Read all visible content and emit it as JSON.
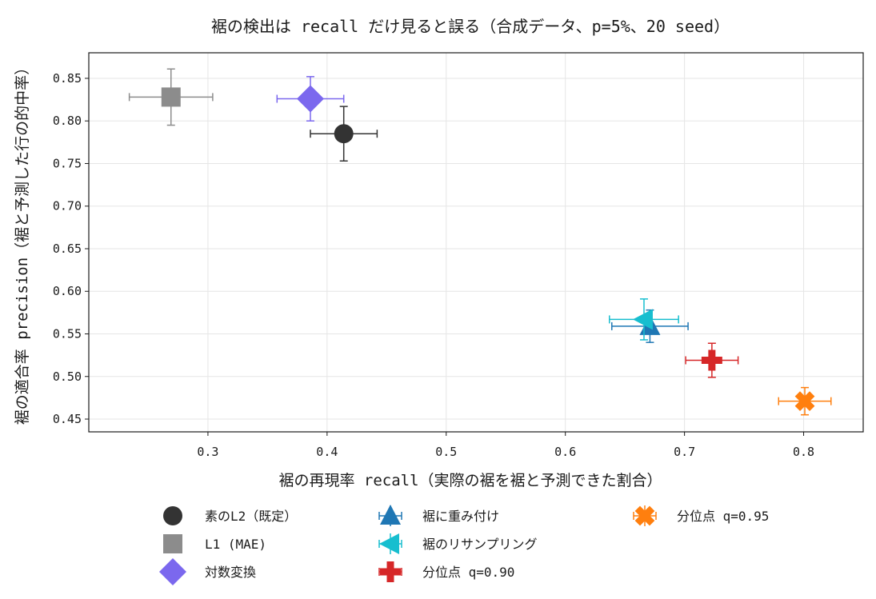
{
  "chart_data": {
    "type": "scatter",
    "title": "裾の検出は recall だけ見ると誤る（合成データ、p=5%、20 seed）",
    "xlabel": "裾の再現率 recall（実際の裾を裾と予測できた割合）",
    "ylabel": "裾の適合率 precision（裾と予測した行の的中率）",
    "xlim": [
      0.2,
      0.85
    ],
    "ylim": [
      0.435,
      0.88
    ],
    "x_ticks": [
      0.3,
      0.4,
      0.5,
      0.6,
      0.7,
      0.8
    ],
    "x_tick_labels": [
      "0.3",
      "0.4",
      "0.5",
      "0.6",
      "0.7",
      "0.8"
    ],
    "y_ticks": [
      0.45,
      0.5,
      0.55,
      0.6,
      0.65,
      0.7,
      0.75,
      0.8,
      0.85
    ],
    "y_tick_labels": [
      "0.45",
      "0.50",
      "0.55",
      "0.60",
      "0.65",
      "0.70",
      "0.75",
      "0.80",
      "0.85"
    ],
    "grid": true,
    "legend_position": "bottom",
    "series": [
      {
        "name": "素のL2（既定）",
        "marker": "circle",
        "color": "#333333",
        "x": 0.414,
        "y": 0.785,
        "x_err": 0.028,
        "y_err": 0.032
      },
      {
        "name": "L1 (MAE)",
        "marker": "square",
        "color": "#8c8c8c",
        "x": 0.269,
        "y": 0.828,
        "x_err": 0.035,
        "y_err": 0.033
      },
      {
        "name": "対数変換",
        "marker": "diamond",
        "color": "#7b68ee",
        "x": 0.386,
        "y": 0.826,
        "x_err": 0.028,
        "y_err": 0.026
      },
      {
        "name": "裾に重み付け",
        "marker": "triangle-up",
        "color": "#1f77b4",
        "x": 0.671,
        "y": 0.559,
        "x_err": 0.032,
        "y_err": 0.019
      },
      {
        "name": "裾のリサンプリング",
        "marker": "triangle-left",
        "color": "#17becf",
        "x": 0.666,
        "y": 0.567,
        "x_err": 0.029,
        "y_err": 0.024
      },
      {
        "name": "分位点 q=0.90",
        "marker": "plus",
        "color": "#d62728",
        "x": 0.723,
        "y": 0.519,
        "x_err": 0.022,
        "y_err": 0.02
      },
      {
        "name": "分位点 q=0.95",
        "marker": "x",
        "color": "#ff7f0e",
        "x": 0.801,
        "y": 0.471,
        "x_err": 0.022,
        "y_err": 0.016
      }
    ]
  }
}
